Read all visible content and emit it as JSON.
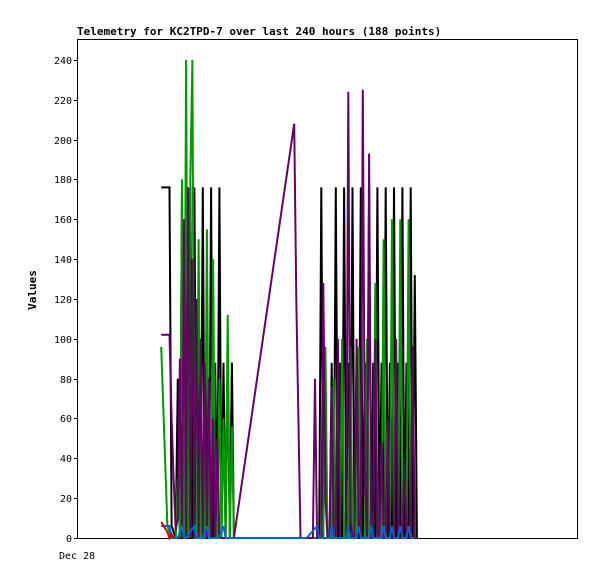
{
  "chart_data": {
    "type": "line",
    "title": "Telemetry for KC2TPD-7 over last 240 hours (188 points)",
    "ylabel": "Values",
    "xlabel": "",
    "x_tick_labels": [
      "Dec 28"
    ],
    "ylim": [
      0,
      250
    ],
    "xlim": [
      0,
      240
    ],
    "y_ticks": [
      0,
      20,
      40,
      60,
      80,
      100,
      120,
      140,
      160,
      180,
      200,
      220,
      240
    ],
    "grid": false,
    "legend": "none",
    "series": [
      {
        "color": "#000000",
        "points": [
          [
            40,
            176
          ],
          [
            44,
            176
          ],
          [
            45,
            6
          ],
          [
            47,
            0
          ],
          [
            48,
            80
          ],
          [
            49,
            0
          ],
          [
            50,
            176
          ],
          [
            51,
            0
          ],
          [
            52,
            176
          ],
          [
            53,
            0
          ],
          [
            54,
            176
          ],
          [
            55,
            0
          ],
          [
            56,
            176
          ],
          [
            57,
            0
          ],
          [
            58,
            88
          ],
          [
            59,
            0
          ],
          [
            60,
            176
          ],
          [
            61,
            0
          ],
          [
            62,
            88
          ],
          [
            63,
            0
          ],
          [
            64,
            176
          ],
          [
            65,
            0
          ],
          [
            66,
            88
          ],
          [
            67,
            0
          ],
          [
            68,
            176
          ],
          [
            69,
            0
          ],
          [
            70,
            88
          ],
          [
            71,
            0
          ],
          [
            72,
            88
          ],
          [
            73,
            0
          ],
          [
            74,
            88
          ],
          [
            75,
            0
          ],
          [
            76,
            0
          ],
          [
            110,
            0
          ],
          [
            116,
            0
          ],
          [
            117,
            176
          ],
          [
            118,
            0
          ],
          [
            121,
            0
          ],
          [
            122,
            88
          ],
          [
            123,
            0
          ],
          [
            124,
            176
          ],
          [
            125,
            0
          ],
          [
            126,
            88
          ],
          [
            127,
            0
          ],
          [
            128,
            176
          ],
          [
            129,
            0
          ],
          [
            130,
            88
          ],
          [
            131,
            0
          ],
          [
            132,
            176
          ],
          [
            133,
            0
          ],
          [
            134,
            88
          ],
          [
            135,
            0
          ],
          [
            136,
            176
          ],
          [
            137,
            0
          ],
          [
            138,
            88
          ],
          [
            139,
            0
          ],
          [
            140,
            176
          ],
          [
            141,
            0
          ],
          [
            142,
            88
          ],
          [
            143,
            0
          ],
          [
            144,
            176
          ],
          [
            145,
            0
          ],
          [
            146,
            88
          ],
          [
            147,
            0
          ],
          [
            148,
            176
          ],
          [
            149,
            0
          ],
          [
            150,
            88
          ],
          [
            151,
            0
          ],
          [
            152,
            176
          ],
          [
            153,
            0
          ],
          [
            154,
            88
          ],
          [
            155,
            0
          ],
          [
            156,
            176
          ],
          [
            157,
            0
          ],
          [
            158,
            88
          ],
          [
            159,
            0
          ],
          [
            160,
            176
          ],
          [
            161,
            0
          ],
          [
            162,
            132
          ],
          [
            163,
            0
          ]
        ]
      },
      {
        "color": "#009900",
        "points": [
          [
            40,
            96
          ],
          [
            43,
            6
          ],
          [
            45,
            0
          ],
          [
            47,
            0
          ],
          [
            48,
            30
          ],
          [
            49,
            0
          ],
          [
            50,
            180
          ],
          [
            51,
            0
          ],
          [
            52,
            240
          ],
          [
            53,
            0
          ],
          [
            54,
            180
          ],
          [
            55,
            240
          ],
          [
            56,
            0
          ],
          [
            57,
            0
          ],
          [
            58,
            150
          ],
          [
            59,
            0
          ],
          [
            60,
            0
          ],
          [
            61,
            0
          ],
          [
            62,
            155
          ],
          [
            63,
            0
          ],
          [
            64,
            0
          ],
          [
            65,
            140
          ],
          [
            66,
            0
          ],
          [
            67,
            0
          ],
          [
            68,
            80
          ],
          [
            69,
            0
          ],
          [
            70,
            60
          ],
          [
            71,
            0
          ],
          [
            72,
            112
          ],
          [
            73,
            0
          ],
          [
            74,
            56
          ],
          [
            75,
            0
          ],
          [
            76,
            0
          ],
          [
            110,
            0
          ],
          [
            118,
            0
          ],
          [
            119,
            96
          ],
          [
            120,
            0
          ],
          [
            122,
            0
          ],
          [
            123,
            80
          ],
          [
            124,
            0
          ],
          [
            126,
            0
          ],
          [
            127,
            100
          ],
          [
            128,
            0
          ],
          [
            130,
            0
          ],
          [
            131,
            96
          ],
          [
            132,
            0
          ],
          [
            134,
            0
          ],
          [
            135,
            96
          ],
          [
            136,
            0
          ],
          [
            138,
            0
          ],
          [
            139,
            100
          ],
          [
            140,
            0
          ],
          [
            142,
            0
          ],
          [
            143,
            128
          ],
          [
            144,
            0
          ],
          [
            146,
            0
          ],
          [
            147,
            150
          ],
          [
            148,
            0
          ],
          [
            150,
            0
          ],
          [
            151,
            160
          ],
          [
            152,
            0
          ],
          [
            154,
            0
          ],
          [
            155,
            160
          ],
          [
            156,
            0
          ],
          [
            158,
            0
          ],
          [
            159,
            160
          ],
          [
            160,
            0
          ],
          [
            162,
            0
          ]
        ]
      },
      {
        "color": "#660066",
        "points": [
          [
            40,
            102
          ],
          [
            44,
            102
          ],
          [
            45,
            60
          ],
          [
            46,
            30
          ],
          [
            47,
            4
          ],
          [
            48,
            10
          ],
          [
            49,
            90
          ],
          [
            50,
            0
          ],
          [
            51,
            160
          ],
          [
            52,
            0
          ],
          [
            53,
            176
          ],
          [
            54,
            0
          ],
          [
            55,
            140
          ],
          [
            56,
            0
          ],
          [
            57,
            120
          ],
          [
            58,
            0
          ],
          [
            59,
            100
          ],
          [
            60,
            0
          ],
          [
            61,
            88
          ],
          [
            62,
            0
          ],
          [
            63,
            80
          ],
          [
            64,
            0
          ],
          [
            65,
            60
          ],
          [
            66,
            0
          ],
          [
            67,
            50
          ],
          [
            68,
            0
          ],
          [
            70,
            0
          ],
          [
            75,
            0
          ],
          [
            104,
            208
          ],
          [
            105,
            120
          ],
          [
            106,
            60
          ],
          [
            107,
            0
          ],
          [
            108,
            0
          ],
          [
            111,
            0
          ],
          [
            113,
            0
          ],
          [
            114,
            80
          ],
          [
            115,
            0
          ],
          [
            117,
            0
          ],
          [
            118,
            128
          ],
          [
            119,
            20
          ],
          [
            120,
            0
          ],
          [
            121,
            0
          ],
          [
            122,
            76
          ],
          [
            123,
            0
          ],
          [
            124,
            0
          ],
          [
            125,
            100
          ],
          [
            126,
            0
          ],
          [
            128,
            0
          ],
          [
            129,
            0
          ],
          [
            130,
            224
          ],
          [
            131,
            10
          ],
          [
            132,
            0
          ],
          [
            133,
            0
          ],
          [
            134,
            100
          ],
          [
            135,
            10
          ],
          [
            136,
            0
          ],
          [
            137,
            225
          ],
          [
            138,
            30
          ],
          [
            139,
            0
          ],
          [
            140,
            193
          ],
          [
            141,
            0
          ],
          [
            142,
            0
          ],
          [
            143,
            100
          ],
          [
            144,
            0
          ],
          [
            145,
            0
          ],
          [
            146,
            48
          ],
          [
            147,
            0
          ],
          [
            148,
            0
          ],
          [
            149,
            60
          ],
          [
            150,
            0
          ],
          [
            152,
            0
          ],
          [
            153,
            100
          ],
          [
            154,
            0
          ],
          [
            156,
            0
          ],
          [
            157,
            40
          ],
          [
            158,
            0
          ],
          [
            160,
            0
          ],
          [
            161,
            96
          ],
          [
            162,
            0
          ],
          [
            163,
            0
          ]
        ]
      },
      {
        "color": "#0066cc",
        "points": [
          [
            40,
            6
          ],
          [
            44,
            6
          ],
          [
            45,
            0
          ],
          [
            48,
            0
          ],
          [
            50,
            6
          ],
          [
            51,
            0
          ],
          [
            52,
            0
          ],
          [
            56,
            6
          ],
          [
            57,
            0
          ],
          [
            60,
            0
          ],
          [
            62,
            6
          ],
          [
            63,
            0
          ],
          [
            68,
            0
          ],
          [
            70,
            6
          ],
          [
            71,
            0
          ],
          [
            75,
            0
          ],
          [
            110,
            0
          ],
          [
            115,
            6
          ],
          [
            116,
            0
          ],
          [
            121,
            0
          ],
          [
            122,
            6
          ],
          [
            123,
            0
          ],
          [
            129,
            0
          ],
          [
            130,
            6
          ],
          [
            131,
            0
          ],
          [
            134,
            0
          ],
          [
            135,
            6
          ],
          [
            136,
            0
          ],
          [
            140,
            0
          ],
          [
            141,
            6
          ],
          [
            142,
            0
          ],
          [
            146,
            0
          ],
          [
            147,
            6
          ],
          [
            148,
            0
          ],
          [
            150,
            0
          ],
          [
            151,
            6
          ],
          [
            152,
            0
          ],
          [
            154,
            0
          ],
          [
            155,
            6
          ],
          [
            156,
            0
          ],
          [
            158,
            0
          ],
          [
            159,
            6
          ],
          [
            160,
            0
          ]
        ]
      },
      {
        "color": "#cc0000",
        "points": [
          [
            40,
            8
          ],
          [
            43,
            3
          ],
          [
            44,
            0
          ],
          [
            45,
            2
          ],
          [
            46,
            0
          ]
        ]
      }
    ]
  }
}
